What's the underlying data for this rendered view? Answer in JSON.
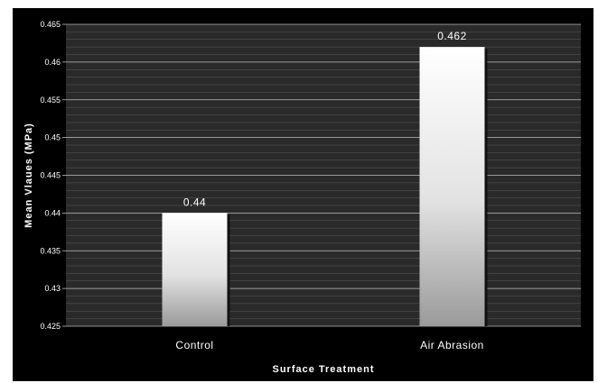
{
  "chart_data": {
    "type": "bar",
    "categories": [
      "Control",
      "Air Abrasion"
    ],
    "values": [
      0.44,
      0.462
    ],
    "data_labels": [
      "0.44",
      "0.462"
    ],
    "xlabel": "Surface Treatment",
    "ylabel": "Mean Vlaues (MPa)",
    "ylim": [
      0.425,
      0.465
    ],
    "yticks": [
      "0.425",
      "0.43",
      "0.435",
      "0.44",
      "0.445",
      "0.45",
      "0.455",
      "0.46",
      "0.465"
    ],
    "grid": true,
    "legend": "none",
    "colors": {
      "background": "#000000",
      "plot_area": "#2a2a2a",
      "major_grid": "#bdbdbd",
      "minor_grid": "#5a5a5a",
      "bar_top": "#ffffff",
      "bar_bottom": "#9a9a9a",
      "text": "#ffffff"
    }
  }
}
